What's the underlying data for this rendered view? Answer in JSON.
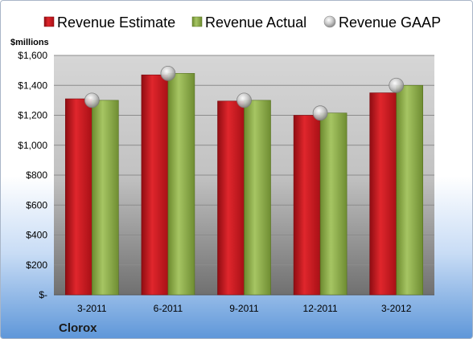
{
  "chart_data": {
    "type": "bar",
    "categories": [
      "3-2011",
      "6-2011",
      "9-2011",
      "12-2011",
      "3-2012"
    ],
    "series": [
      {
        "name": "Revenue Estimate",
        "values": [
          1310,
          1470,
          1295,
          1200,
          1350
        ],
        "color": "#c8161d"
      },
      {
        "name": "Revenue Actual",
        "values": [
          1300,
          1480,
          1300,
          1215,
          1400
        ],
        "color": "#8fae4a"
      },
      {
        "name": "Revenue GAAP",
        "values": [
          1300,
          1480,
          1300,
          1215,
          1400
        ],
        "color": "#b5b5b5"
      }
    ],
    "ylabel": "$millions",
    "ylim": [
      0,
      1600
    ],
    "yticks": [
      0,
      200,
      400,
      600,
      800,
      1000,
      1200,
      1400,
      1600
    ],
    "ytick_labels": [
      "$-",
      "$200",
      "$400",
      "$600",
      "$800",
      "$1,000",
      "$1,200",
      "$1,400",
      "$1,600"
    ],
    "legend_position": "top",
    "grid": true
  },
  "footer": {
    "company": "Clorox"
  }
}
